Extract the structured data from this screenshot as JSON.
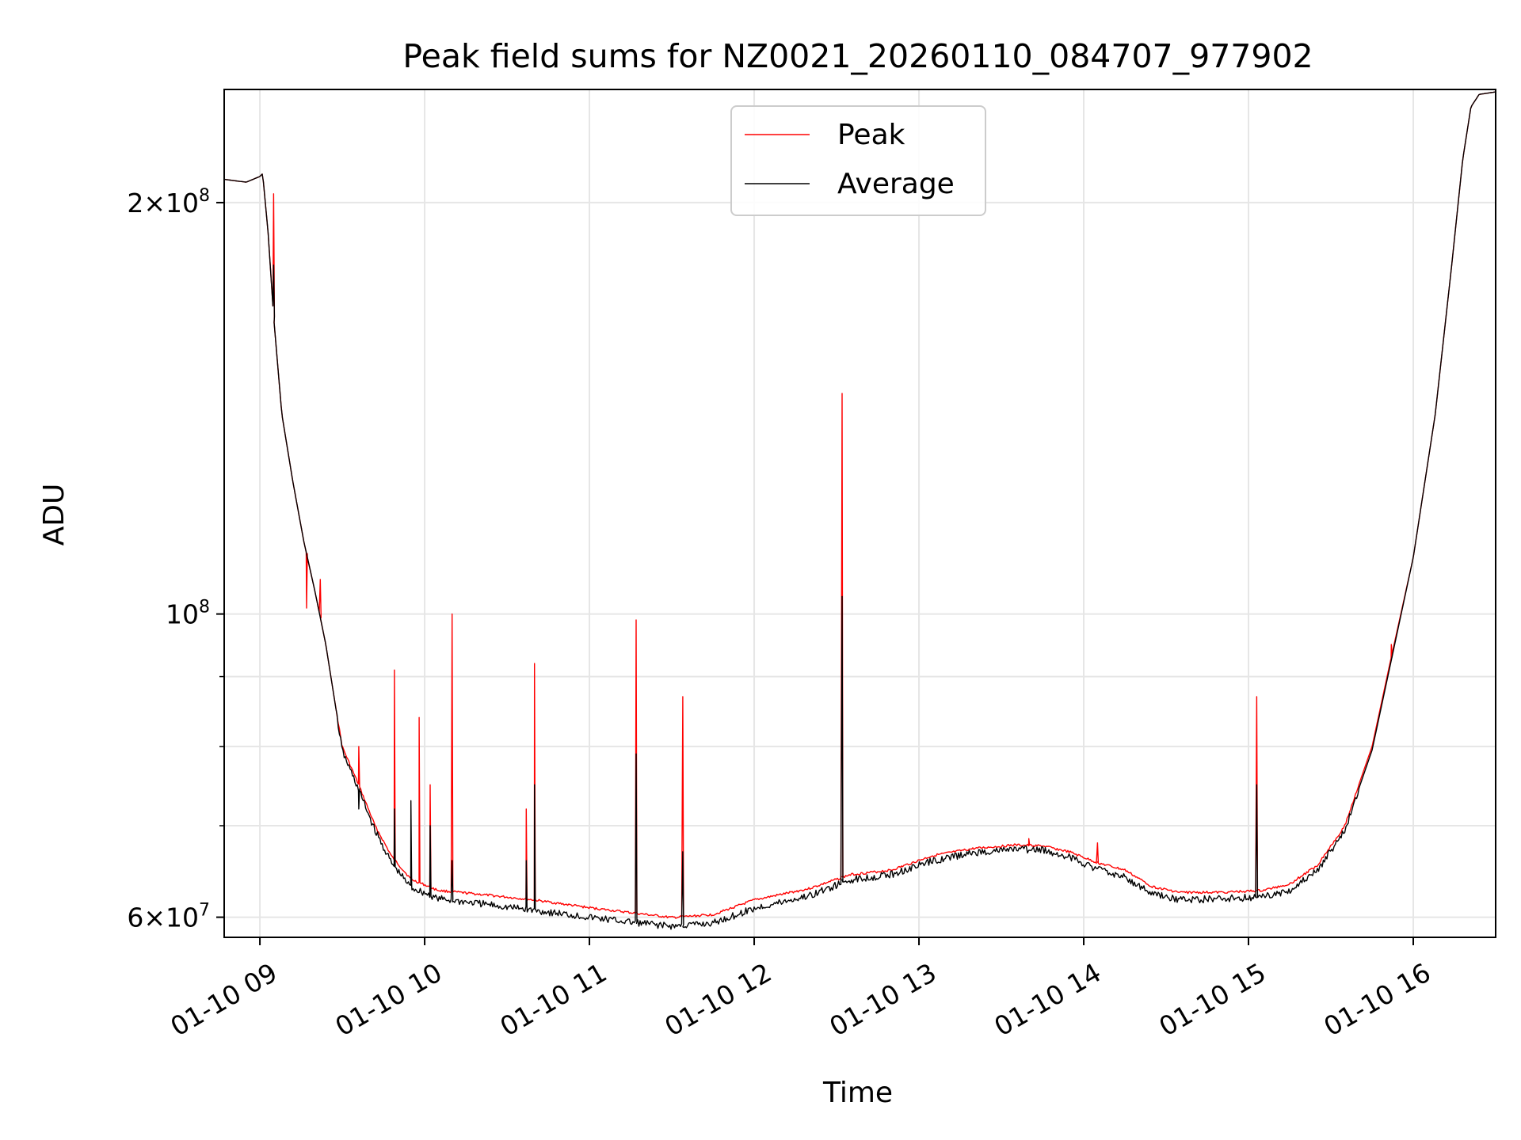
{
  "chart_data": {
    "type": "line",
    "title": "Peak field sums for NZ0021_20260110_084707_977902",
    "xlabel": "Time",
    "ylabel": "ADU",
    "y_scale": "log",
    "grid": true,
    "legend_position": "top-center",
    "xlim": [
      "2026-01-10 08:47",
      "2026-01-10 16:30"
    ],
    "ylim": [
      58000000,
      242000000
    ],
    "x_ticks": [
      {
        "value": "2026-01-10 09:00",
        "label": "01-10 09"
      },
      {
        "value": "2026-01-10 10:00",
        "label": "01-10 10"
      },
      {
        "value": "2026-01-10 11:00",
        "label": "01-10 11"
      },
      {
        "value": "2026-01-10 12:00",
        "label": "01-10 12"
      },
      {
        "value": "2026-01-10 13:00",
        "label": "01-10 13"
      },
      {
        "value": "2026-01-10 14:00",
        "label": "01-10 14"
      },
      {
        "value": "2026-01-10 15:00",
        "label": "01-10 15"
      },
      {
        "value": "2026-01-10 16:00",
        "label": "01-10 16"
      }
    ],
    "y_ticks": [
      {
        "value": 60000000,
        "mantissa": "6",
        "exponent": "7"
      },
      {
        "value": 100000000,
        "mantissa": "",
        "exponent": "8"
      },
      {
        "value": 200000000,
        "mantissa": "2",
        "exponent": "8"
      }
    ],
    "y_minor_gridlines": [
      70000000,
      80000000,
      90000000
    ],
    "series": [
      {
        "name": "Peak",
        "color": "#ff0000",
        "baseline": [
          [
            "2026-01-10 08:47",
            208000000
          ],
          [
            "2026-01-10 08:55",
            207000000
          ],
          [
            "2026-01-10 09:00",
            209000000
          ],
          [
            "2026-01-10 09:01",
            210000000
          ],
          [
            "2026-01-10 09:03",
            190000000
          ],
          [
            "2026-01-10 09:05",
            165000000
          ],
          [
            "2026-01-10 09:08",
            140000000
          ],
          [
            "2026-01-10 09:12",
            125000000
          ],
          [
            "2026-01-10 09:16",
            113000000
          ],
          [
            "2026-01-10 09:20",
            104000000
          ],
          [
            "2026-01-10 09:24",
            95000000
          ],
          [
            "2026-01-10 09:27",
            87000000
          ],
          [
            "2026-01-10 09:30",
            80000000
          ],
          [
            "2026-01-10 09:36",
            75000000
          ],
          [
            "2026-01-10 09:42",
            70000000
          ],
          [
            "2026-01-10 09:48",
            66500000
          ],
          [
            "2026-01-10 09:55",
            64000000
          ],
          [
            "2026-01-10 10:05",
            62800000
          ],
          [
            "2026-01-10 10:20",
            62400000
          ],
          [
            "2026-01-10 10:40",
            61800000
          ],
          [
            "2026-01-10 11:00",
            61000000
          ],
          [
            "2026-01-10 11:15",
            60500000
          ],
          [
            "2026-01-10 11:30",
            60000000
          ],
          [
            "2026-01-10 11:45",
            60300000
          ],
          [
            "2026-01-10 12:00",
            61800000
          ],
          [
            "2026-01-10 12:20",
            63000000
          ],
          [
            "2026-01-10 12:35",
            64500000
          ],
          [
            "2026-01-10 12:50",
            65000000
          ],
          [
            "2026-01-10 13:05",
            66600000
          ],
          [
            "2026-01-10 13:20",
            67400000
          ],
          [
            "2026-01-10 13:35",
            67800000
          ],
          [
            "2026-01-10 13:45",
            67700000
          ],
          [
            "2026-01-10 13:55",
            67000000
          ],
          [
            "2026-01-10 14:05",
            65800000
          ],
          [
            "2026-01-10 14:15",
            65000000
          ],
          [
            "2026-01-10 14:25",
            63200000
          ],
          [
            "2026-01-10 14:35",
            62600000
          ],
          [
            "2026-01-10 14:50",
            62600000
          ],
          [
            "2026-01-10 15:05",
            62800000
          ],
          [
            "2026-01-10 15:15",
            63500000
          ],
          [
            "2026-01-10 15:25",
            65500000
          ],
          [
            "2026-01-10 15:35",
            70000000
          ],
          [
            "2026-01-10 15:45",
            80000000
          ],
          [
            "2026-01-10 15:52",
            93000000
          ],
          [
            "2026-01-10 16:00",
            110000000
          ],
          [
            "2026-01-10 16:08",
            140000000
          ],
          [
            "2026-01-10 16:14",
            180000000
          ],
          [
            "2026-01-10 16:18",
            215000000
          ],
          [
            "2026-01-10 16:21",
            235000000
          ],
          [
            "2026-01-10 16:24",
            240000000
          ],
          [
            "2026-01-10 16:30",
            241000000
          ]
        ],
        "spikes": [
          [
            "2026-01-10 09:05",
            203000000
          ],
          [
            "2026-01-10 09:17",
            101000000
          ],
          [
            "2026-01-10 09:22",
            106000000
          ],
          [
            "2026-01-10 09:36",
            80000000
          ],
          [
            "2026-01-10 09:49",
            91000000
          ],
          [
            "2026-01-10 09:58",
            84000000
          ],
          [
            "2026-01-10 10:02",
            75000000
          ],
          [
            "2026-01-10 10:10",
            100000000
          ],
          [
            "2026-01-10 10:37",
            72000000
          ],
          [
            "2026-01-10 10:40",
            92000000
          ],
          [
            "2026-01-10 11:17",
            99000000
          ],
          [
            "2026-01-10 11:34",
            87000000
          ],
          [
            "2026-01-10 12:32",
            145000000
          ],
          [
            "2026-01-10 13:40",
            68500000
          ],
          [
            "2026-01-10 14:05",
            68000000
          ],
          [
            "2026-01-10 15:03",
            87000000
          ],
          [
            "2026-01-10 15:52",
            95000000
          ]
        ]
      },
      {
        "name": "Average",
        "color": "#000000",
        "baseline": [
          [
            "2026-01-10 08:47",
            208000000
          ],
          [
            "2026-01-10 08:55",
            207000000
          ],
          [
            "2026-01-10 09:00",
            209000000
          ],
          [
            "2026-01-10 09:01",
            210000000
          ],
          [
            "2026-01-10 09:03",
            190000000
          ],
          [
            "2026-01-10 09:05",
            165000000
          ],
          [
            "2026-01-10 09:08",
            140000000
          ],
          [
            "2026-01-10 09:12",
            125000000
          ],
          [
            "2026-01-10 09:16",
            113000000
          ],
          [
            "2026-01-10 09:20",
            104000000
          ],
          [
            "2026-01-10 09:24",
            95000000
          ],
          [
            "2026-01-10 09:27",
            87000000
          ],
          [
            "2026-01-10 09:30",
            79500000
          ],
          [
            "2026-01-10 09:36",
            74500000
          ],
          [
            "2026-01-10 09:42",
            69500000
          ],
          [
            "2026-01-10 09:48",
            65800000
          ],
          [
            "2026-01-10 09:55",
            63200000
          ],
          [
            "2026-01-10 10:05",
            62000000
          ],
          [
            "2026-01-10 10:20",
            61500000
          ],
          [
            "2026-01-10 10:40",
            60800000
          ],
          [
            "2026-01-10 11:00",
            60100000
          ],
          [
            "2026-01-10 11:15",
            59600000
          ],
          [
            "2026-01-10 11:30",
            59200000
          ],
          [
            "2026-01-10 11:45",
            59500000
          ],
          [
            "2026-01-10 12:00",
            61000000
          ],
          [
            "2026-01-10 12:20",
            62300000
          ],
          [
            "2026-01-10 12:35",
            64000000
          ],
          [
            "2026-01-10 12:50",
            64600000
          ],
          [
            "2026-01-10 13:05",
            66100000
          ],
          [
            "2026-01-10 13:20",
            67000000
          ],
          [
            "2026-01-10 13:35",
            67400000
          ],
          [
            "2026-01-10 13:45",
            67300000
          ],
          [
            "2026-01-10 13:55",
            66500000
          ],
          [
            "2026-01-10 14:05",
            65200000
          ],
          [
            "2026-01-10 14:15",
            64300000
          ],
          [
            "2026-01-10 14:25",
            62500000
          ],
          [
            "2026-01-10 14:35",
            61900000
          ],
          [
            "2026-01-10 14:50",
            62000000
          ],
          [
            "2026-01-10 15:05",
            62200000
          ],
          [
            "2026-01-10 15:15",
            62900000
          ],
          [
            "2026-01-10 15:25",
            65000000
          ],
          [
            "2026-01-10 15:35",
            69500000
          ],
          [
            "2026-01-10 15:45",
            79500000
          ],
          [
            "2026-01-10 15:52",
            92500000
          ],
          [
            "2026-01-10 16:00",
            110000000
          ],
          [
            "2026-01-10 16:08",
            140000000
          ],
          [
            "2026-01-10 16:14",
            180000000
          ],
          [
            "2026-01-10 16:18",
            215000000
          ],
          [
            "2026-01-10 16:21",
            235000000
          ],
          [
            "2026-01-10 16:24",
            240000000
          ],
          [
            "2026-01-10 16:30",
            241000000
          ]
        ],
        "spikes": [
          [
            "2026-01-10 09:05",
            180000000
          ],
          [
            "2026-01-10 09:36",
            72000000
          ],
          [
            "2026-01-10 09:49",
            72000000
          ],
          [
            "2026-01-10 09:55",
            73000000
          ],
          [
            "2026-01-10 10:02",
            70000000
          ],
          [
            "2026-01-10 10:10",
            66000000
          ],
          [
            "2026-01-10 10:37",
            66000000
          ],
          [
            "2026-01-10 10:40",
            75000000
          ],
          [
            "2026-01-10 11:17",
            79000000
          ],
          [
            "2026-01-10 11:34",
            67000000
          ],
          [
            "2026-01-10 12:32",
            103000000
          ],
          [
            "2026-01-10 15:03",
            75000000
          ]
        ]
      }
    ]
  }
}
